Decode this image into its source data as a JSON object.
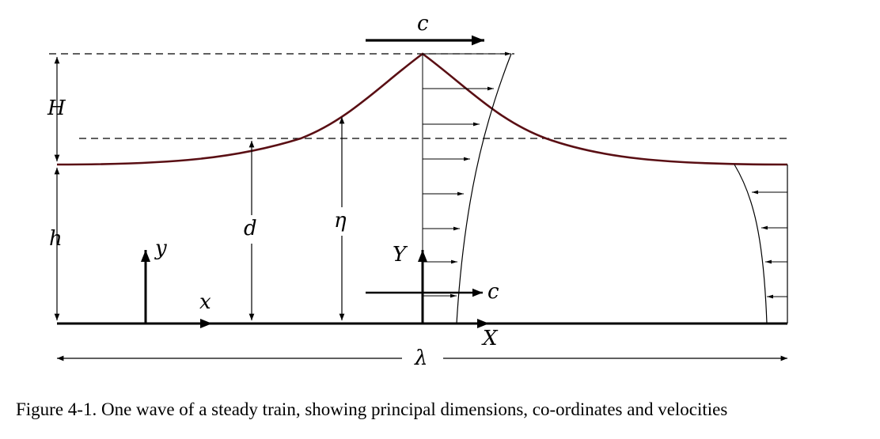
{
  "labels": {
    "c_top": "c",
    "H": "H",
    "h": "h",
    "d": "d",
    "eta": "η",
    "y": "y",
    "x": "x",
    "Y": "Y",
    "c_mid": "c",
    "X": "X",
    "lambda": "λ"
  },
  "caption": "Figure 4-1. One wave of a steady train, showing principal dimensions, co-ordinates and velocities",
  "colors": {
    "wave_surface": "#5a0f14",
    "lines": "#000000"
  }
}
